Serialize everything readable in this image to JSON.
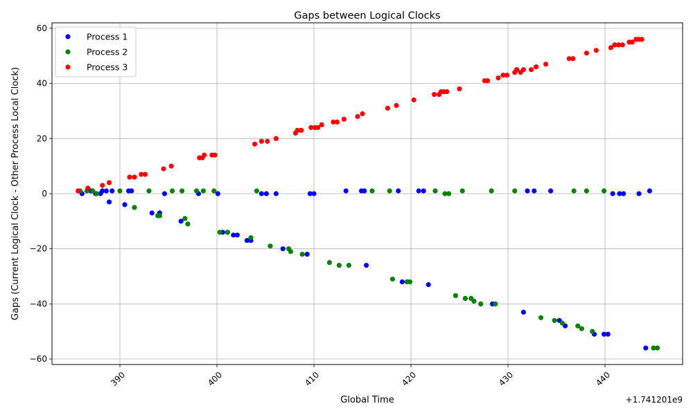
{
  "chart_data": {
    "type": "scatter",
    "title": "Gaps between Logical Clocks",
    "xlabel": "Global Time",
    "ylabel": "Gaps (Current Logical Clock - Other Process Local Clock)",
    "x_offset_label": "+1.741201e9",
    "x_offset": 1741201000,
    "xlim": [
      383,
      448
    ],
    "ylim": [
      -62,
      62
    ],
    "x_ticks": [
      390,
      400,
      410,
      420,
      430,
      440
    ],
    "x_tick_labels": [
      "390",
      "400",
      "410",
      "420",
      "430",
      "440"
    ],
    "y_ticks": [
      -60,
      -40,
      -20,
      0,
      20,
      40,
      60
    ],
    "y_tick_labels": [
      "−60",
      "−40",
      "−20",
      "0",
      "20",
      "40",
      "60"
    ],
    "grid": true,
    "legend_position": "top-left",
    "series": [
      {
        "name": "Process 1",
        "color": "#0000ff",
        "points": [
          [
            385.7,
            1
          ],
          [
            386.1,
            0
          ],
          [
            387.0,
            1
          ],
          [
            387.5,
            0
          ],
          [
            388.0,
            0
          ],
          [
            388.2,
            1
          ],
          [
            388.6,
            1
          ],
          [
            388.9,
            -3
          ],
          [
            389.2,
            1
          ],
          [
            390.5,
            -4
          ],
          [
            390.9,
            1
          ],
          [
            391.2,
            1
          ],
          [
            393.3,
            -7
          ],
          [
            394.1,
            -7
          ],
          [
            394.6,
            0
          ],
          [
            396.3,
            -10
          ],
          [
            398.1,
            0
          ],
          [
            400.1,
            0
          ],
          [
            400.6,
            -14
          ],
          [
            401.1,
            -14
          ],
          [
            401.7,
            -15
          ],
          [
            402.1,
            -15
          ],
          [
            403.1,
            -17
          ],
          [
            403.5,
            -17
          ],
          [
            404.6,
            0
          ],
          [
            405.1,
            0
          ],
          [
            406.1,
            0
          ],
          [
            406.8,
            -20
          ],
          [
            409.3,
            -22
          ],
          [
            409.6,
            0
          ],
          [
            410.0,
            0
          ],
          [
            413.3,
            1
          ],
          [
            414.9,
            1
          ],
          [
            415.2,
            1
          ],
          [
            415.4,
            -26
          ],
          [
            418.7,
            1
          ],
          [
            419.1,
            -32
          ],
          [
            420.8,
            1
          ],
          [
            421.3,
            1
          ],
          [
            421.8,
            -33
          ],
          [
            428.4,
            -40
          ],
          [
            431.6,
            -43
          ],
          [
            432.0,
            1
          ],
          [
            432.7,
            1
          ],
          [
            434.4,
            1
          ],
          [
            435.3,
            -46
          ],
          [
            435.9,
            -48
          ],
          [
            438.9,
            -51
          ],
          [
            439.9,
            -51
          ],
          [
            440.3,
            -51
          ],
          [
            440.8,
            0
          ],
          [
            441.5,
            0
          ],
          [
            441.9,
            0
          ],
          [
            443.5,
            0
          ],
          [
            444.2,
            -56
          ],
          [
            444.6,
            1
          ]
        ]
      },
      {
        "name": "Process 2",
        "color": "#008000",
        "points": [
          [
            385.9,
            1
          ],
          [
            386.6,
            1
          ],
          [
            387.2,
            1
          ],
          [
            387.6,
            0
          ],
          [
            390.0,
            1
          ],
          [
            391.5,
            -5
          ],
          [
            393.0,
            1
          ],
          [
            393.9,
            -8
          ],
          [
            394.1,
            -8
          ],
          [
            395.4,
            1
          ],
          [
            396.4,
            1
          ],
          [
            396.7,
            -9
          ],
          [
            397.0,
            -11
          ],
          [
            397.9,
            1
          ],
          [
            398.6,
            1
          ],
          [
            399.7,
            1
          ],
          [
            400.3,
            -14
          ],
          [
            401.1,
            -14
          ],
          [
            403.5,
            -16
          ],
          [
            404.1,
            1
          ],
          [
            405.5,
            -19
          ],
          [
            407.4,
            -20
          ],
          [
            407.6,
            -21
          ],
          [
            408.8,
            -22
          ],
          [
            411.6,
            -25
          ],
          [
            412.6,
            -26
          ],
          [
            413.6,
            -26
          ],
          [
            416.0,
            1
          ],
          [
            417.8,
            1
          ],
          [
            418.1,
            -31
          ],
          [
            419.6,
            -32
          ],
          [
            419.9,
            -32
          ],
          [
            422.5,
            1
          ],
          [
            423.5,
            0
          ],
          [
            423.9,
            0
          ],
          [
            424.6,
            -37
          ],
          [
            425.3,
            1
          ],
          [
            425.6,
            -38
          ],
          [
            426.2,
            -38
          ],
          [
            426.5,
            -39
          ],
          [
            427.2,
            -40
          ],
          [
            428.3,
            1
          ],
          [
            428.7,
            -40
          ],
          [
            430.7,
            1
          ],
          [
            433.4,
            -45
          ],
          [
            434.8,
            -46
          ],
          [
            435.6,
            -47
          ],
          [
            436.8,
            1
          ],
          [
            437.2,
            -48
          ],
          [
            437.6,
            -49
          ],
          [
            438.1,
            1
          ],
          [
            438.7,
            -50
          ],
          [
            439.9,
            1
          ],
          [
            445.0,
            -56
          ],
          [
            445.4,
            -56
          ]
        ]
      },
      {
        "name": "Process 3",
        "color": "#ff0000",
        "points": [
          [
            385.7,
            1
          ],
          [
            386.7,
            2
          ],
          [
            388.2,
            3
          ],
          [
            388.9,
            4
          ],
          [
            391.0,
            6
          ],
          [
            391.5,
            6
          ],
          [
            392.2,
            7
          ],
          [
            392.6,
            7
          ],
          [
            394.5,
            9
          ],
          [
            395.3,
            10
          ],
          [
            398.2,
            13
          ],
          [
            398.5,
            13
          ],
          [
            398.7,
            14
          ],
          [
            399.5,
            14
          ],
          [
            399.8,
            14
          ],
          [
            403.9,
            18
          ],
          [
            404.6,
            19
          ],
          [
            405.2,
            19
          ],
          [
            406.1,
            20
          ],
          [
            408.1,
            22
          ],
          [
            408.3,
            23
          ],
          [
            408.7,
            23
          ],
          [
            409.7,
            24
          ],
          [
            410.1,
            24
          ],
          [
            410.4,
            24
          ],
          [
            410.8,
            25
          ],
          [
            412.0,
            26
          ],
          [
            412.4,
            26
          ],
          [
            413.1,
            27
          ],
          [
            414.5,
            28
          ],
          [
            415.0,
            29
          ],
          [
            417.6,
            31
          ],
          [
            418.5,
            32
          ],
          [
            420.3,
            34
          ],
          [
            422.4,
            36
          ],
          [
            422.9,
            36
          ],
          [
            423.1,
            37
          ],
          [
            423.4,
            37
          ],
          [
            423.7,
            37
          ],
          [
            425.0,
            38
          ],
          [
            427.6,
            41
          ],
          [
            427.9,
            41
          ],
          [
            429.0,
            42
          ],
          [
            429.5,
            43
          ],
          [
            429.9,
            43
          ],
          [
            430.7,
            44
          ],
          [
            430.9,
            45
          ],
          [
            431.3,
            44
          ],
          [
            431.6,
            45
          ],
          [
            432.4,
            45
          ],
          [
            432.9,
            46
          ],
          [
            433.9,
            47
          ],
          [
            436.3,
            49
          ],
          [
            436.7,
            49
          ],
          [
            438.1,
            51
          ],
          [
            439.1,
            52
          ],
          [
            440.6,
            53
          ],
          [
            441.0,
            54
          ],
          [
            441.4,
            54
          ],
          [
            441.8,
            54
          ],
          [
            442.5,
            55
          ],
          [
            442.8,
            55
          ],
          [
            443.2,
            56
          ],
          [
            443.5,
            56
          ],
          [
            443.8,
            56
          ]
        ]
      }
    ]
  }
}
